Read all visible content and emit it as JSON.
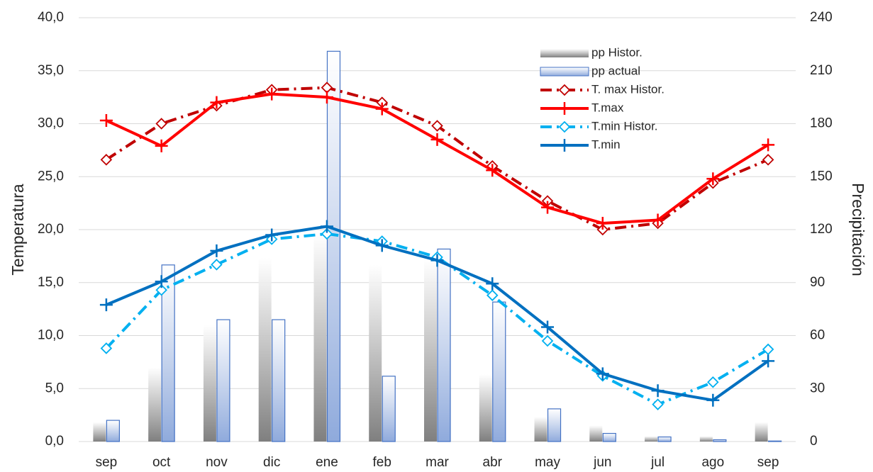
{
  "chart_data": {
    "type": "combo",
    "categories": [
      "sep",
      "oct",
      "nov",
      "dic",
      "ene",
      "feb",
      "mar",
      "abr",
      "may",
      "jun",
      "jul",
      "ago",
      "sep"
    ],
    "y_label": "Temperatura",
    "y2_label": "Precipitación",
    "ylim": [
      0,
      40
    ],
    "yticks": [
      {
        "value": 0,
        "label": "0,0"
      },
      {
        "value": 5,
        "label": "5,0"
      },
      {
        "value": 10,
        "label": "10,0"
      },
      {
        "value": 15,
        "label": "15,0"
      },
      {
        "value": 20,
        "label": "20,0"
      },
      {
        "value": 25,
        "label": "25,0"
      },
      {
        "value": 30,
        "label": "30,0"
      },
      {
        "value": 35,
        "label": "35,0"
      },
      {
        "value": 40,
        "label": "40,0"
      }
    ],
    "y2lim": [
      0,
      240
    ],
    "y2ticks": [
      0,
      30,
      60,
      90,
      120,
      150,
      180,
      210,
      240
    ],
    "grid": true,
    "series": [
      {
        "name": "pp Histor.",
        "type": "bar",
        "axis": "y2",
        "color": "#7f7f7f",
        "values": [
          11,
          42,
          66,
          104,
          118,
          100,
          103,
          38,
          14,
          9,
          3,
          3,
          11
        ]
      },
      {
        "name": "pp actual",
        "type": "bar",
        "axis": "y2",
        "color": "#8faadc",
        "values": [
          12,
          100,
          69,
          69,
          221,
          37,
          109,
          79,
          18.5,
          4.6,
          2.6,
          1,
          0.3
        ]
      },
      {
        "name": "T. max Histor.",
        "type": "line",
        "color": "#c00000",
        "line_style": "dashdot",
        "marker": "diamond",
        "values": [
          26.6,
          30.0,
          31.7,
          33.2,
          33.4,
          32.0,
          29.8,
          26.0,
          22.7,
          20.0,
          20.6,
          24.4,
          26.6
        ]
      },
      {
        "name": "T.max",
        "type": "line",
        "color": "#ff0000",
        "line_style": "solid",
        "marker": "plus",
        "values": [
          30.3,
          27.9,
          32.0,
          32.8,
          32.5,
          31.4,
          28.5,
          25.6,
          22.1,
          20.6,
          20.9,
          24.8,
          28.0
        ]
      },
      {
        "name": "T.min Histor.",
        "type": "line",
        "color": "#00b0f0",
        "line_style": "dashdot",
        "marker": "diamond",
        "values": [
          8.8,
          14.3,
          16.7,
          19.1,
          19.6,
          18.9,
          17.4,
          13.8,
          9.5,
          6.2,
          3.5,
          5.6,
          8.7
        ]
      },
      {
        "name": "T.min",
        "type": "line",
        "color": "#0070c0",
        "line_style": "solid",
        "marker": "plus",
        "values": [
          12.9,
          15.1,
          18.0,
          19.5,
          20.3,
          18.5,
          17.1,
          14.9,
          10.8,
          6.4,
          4.8,
          3.9,
          7.6
        ]
      }
    ]
  }
}
